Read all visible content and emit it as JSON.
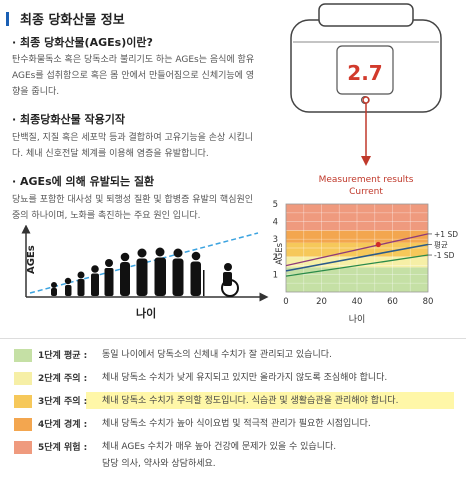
{
  "header": {
    "title": "최종 당화산물 정보"
  },
  "sections": [
    {
      "heading": "· 최종 당화산물(AGEs)이란?",
      "text": "탄수화물독소 혹은 당독소라 불리기도 하는 AGEs는 음식에 함유 AGEs를 섭취함으로 혹은 몸 안에서 만들어짐으로 신체기능에 영향을 줍니다."
    },
    {
      "heading": "· 최종당화산물 작용기작",
      "text": "단백질, 지질 혹은 세포막 등과 결합하여 고유기능을 손상 시킵니다. 체내 신호전달 체계를 이용해 염증을 유발합니다."
    },
    {
      "heading": "· AGEs에 의해 유발되는 질환",
      "text": "당뇨를 포함한 대사성 및 퇴행성 질환 및 합병증 유발의 핵심원인 중의 하나이며, 노화를 촉진하는 주요 원인 입니다."
    }
  ],
  "age_diagram": {
    "ylabel": "AGEs",
    "xlabel": "나이"
  },
  "device": {
    "value": "2.7"
  },
  "measurement": {
    "line1": "Measurement results",
    "line2": "Current"
  },
  "chart_data": {
    "type": "line",
    "xlabel": "나이",
    "ylabel": "AGEs",
    "xlim": [
      0,
      80
    ],
    "ylim": [
      0,
      5
    ],
    "x_ticks": [
      "0",
      "20",
      "40",
      "60",
      "80"
    ],
    "y_ticks": [
      "1",
      "2",
      "3",
      "4",
      "5"
    ],
    "series": [
      {
        "name": "+1 SD",
        "x": [
          0,
          80
        ],
        "values": [
          1.5,
          3.3
        ]
      },
      {
        "name": "평균",
        "x": [
          0,
          80
        ],
        "values": [
          1.2,
          2.7
        ]
      },
      {
        "name": "-1 SD",
        "x": [
          0,
          80
        ],
        "values": [
          0.9,
          2.1
        ]
      }
    ],
    "point": {
      "x": 52,
      "y": 2.7
    },
    "bands": [
      {
        "from": 0,
        "to": 1.4,
        "color": "#c5e0a5"
      },
      {
        "from": 1.4,
        "to": 2.0,
        "color": "#f6efa6"
      },
      {
        "from": 2.0,
        "to": 2.8,
        "color": "#f6c85a"
      },
      {
        "from": 2.8,
        "to": 3.5,
        "color": "#f3a64f"
      },
      {
        "from": 3.5,
        "to": 5.0,
        "color": "#ef9a7e"
      }
    ]
  },
  "legend": [
    {
      "color": "#c5e0a5",
      "label": "1단계 평균 :",
      "desc": "동일 나이에서 당독소의 신체내 수치가 잘 관리되고 있습니다.",
      "highlight": false
    },
    {
      "color": "#f6efa6",
      "label": "2단계 주의 :",
      "desc": "체내 당독소 수치가 낮게 유지되고 있지만 올라가지 않도록 조심해야 합니다.",
      "highlight": false
    },
    {
      "color": "#f6c85a",
      "label": "3단계 주의 :",
      "desc": "체내 당독소 수치가 주의할 정도입니다. 식습관 및 생활습관을 관리해야 합니다.",
      "highlight": true
    },
    {
      "color": "#f3a64f",
      "label": "4단계 경계 :",
      "desc": "체내 당독소 수치가 높아 식이요법 및 적극적 관리가 필요한 시점입니다.",
      "highlight": false
    },
    {
      "color": "#ef9a7e",
      "label": "5단계 위험 :",
      "desc": "체내 AGEs 수치가 매우 높아 건강에 문제가 있을 수 있습니다.",
      "desc2": "담당 의사, 약사와 상담하세요.",
      "highlight": false
    }
  ],
  "colors": {
    "accent": "#1a5fb4",
    "arrow": "#c0392b",
    "highlight": "#fff7a8"
  }
}
